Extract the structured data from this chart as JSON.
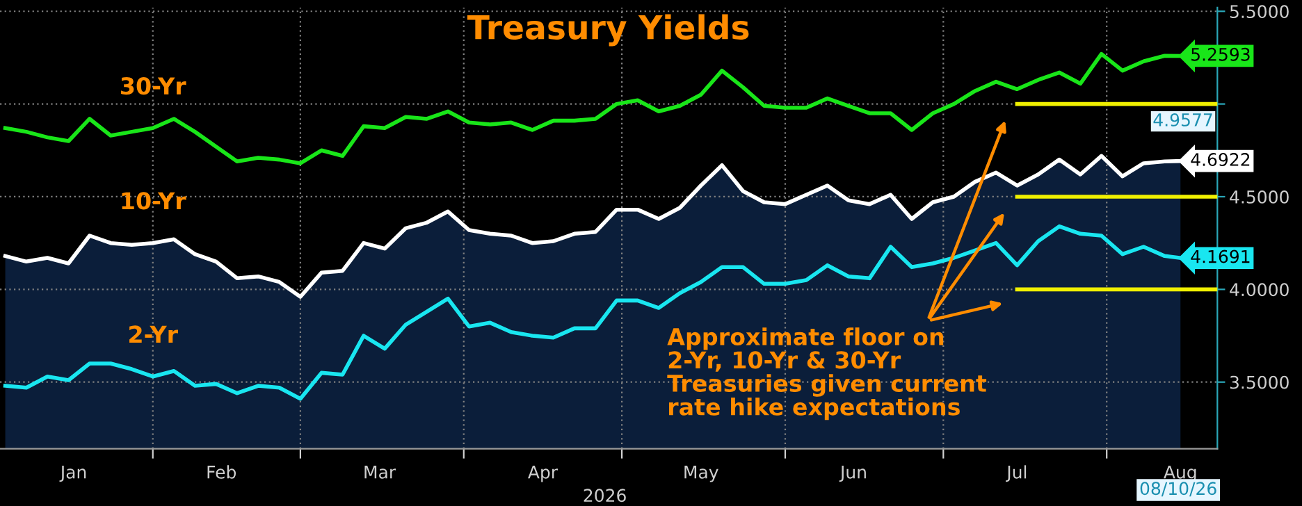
{
  "chart_data": {
    "type": "line",
    "title": "Treasury Yields",
    "xlabel": "2026",
    "x": [
      "2026-01-04",
      "2026-01-08",
      "2026-01-12",
      "2026-01-16",
      "2026-01-20",
      "2026-01-24",
      "2026-01-28",
      "2026-02-01",
      "2026-02-05",
      "2026-02-09",
      "2026-02-13",
      "2026-02-17",
      "2026-02-21",
      "2026-02-25",
      "2026-03-01",
      "2026-03-05",
      "2026-03-09",
      "2026-03-13",
      "2026-03-17",
      "2026-03-21",
      "2026-03-25",
      "2026-03-29",
      "2026-04-02",
      "2026-04-06",
      "2026-04-10",
      "2026-04-14",
      "2026-04-18",
      "2026-04-22",
      "2026-04-26",
      "2026-04-30",
      "2026-05-04",
      "2026-05-08",
      "2026-05-12",
      "2026-05-16",
      "2026-05-20",
      "2026-05-24",
      "2026-05-28",
      "2026-06-01",
      "2026-06-05",
      "2026-06-09",
      "2026-06-13",
      "2026-06-17",
      "2026-06-21",
      "2026-06-25",
      "2026-06-29",
      "2026-07-03",
      "2026-07-07",
      "2026-07-11",
      "2026-07-15",
      "2026-07-19",
      "2026-07-23",
      "2026-07-27",
      "2026-07-31",
      "2026-08-04",
      "2026-08-08",
      "2026-08-12",
      "2026-08-15"
    ],
    "series": [
      {
        "name": "30-Yr",
        "color": "#19e619",
        "values": [
          4.87,
          4.85,
          4.82,
          4.8,
          4.92,
          4.83,
          4.85,
          4.87,
          4.92,
          4.85,
          4.77,
          4.69,
          4.71,
          4.7,
          4.68,
          4.75,
          4.72,
          4.88,
          4.87,
          4.93,
          4.92,
          4.96,
          4.9,
          4.89,
          4.9,
          4.86,
          4.91,
          4.91,
          4.92,
          5.0,
          5.02,
          4.96,
          4.99,
          5.05,
          5.18,
          5.09,
          4.99,
          4.98,
          4.98,
          5.03,
          4.99,
          4.95,
          4.95,
          4.86,
          4.95,
          5.0,
          5.07,
          5.12,
          5.08,
          5.13,
          5.17,
          5.11,
          5.27,
          5.18,
          5.23,
          5.26,
          5.2593
        ],
        "value_labels": [
          null,
          null,
          null,
          null,
          null,
          null,
          null,
          null,
          null,
          null,
          null,
          null,
          null,
          null,
          null,
          null,
          null,
          null,
          null,
          null,
          null,
          null,
          null,
          null,
          null,
          null,
          null,
          null,
          null,
          null,
          null,
          null,
          null,
          null,
          null,
          null,
          null,
          null,
          null,
          null,
          null,
          null,
          null,
          null,
          null,
          null,
          null,
          null,
          null,
          null,
          null,
          null,
          null,
          null,
          null,
          null,
          "5.2593"
        ]
      },
      {
        "name": "10-Yr",
        "type": "area",
        "color": "#ffffff",
        "values": [
          4.18,
          4.15,
          4.17,
          4.14,
          4.29,
          4.25,
          4.24,
          4.25,
          4.27,
          4.19,
          4.15,
          4.06,
          4.07,
          4.04,
          3.96,
          4.09,
          4.1,
          4.25,
          4.22,
          4.33,
          4.36,
          4.42,
          4.32,
          4.3,
          4.29,
          4.25,
          4.26,
          4.3,
          4.31,
          4.43,
          4.43,
          4.38,
          4.44,
          4.56,
          4.67,
          4.53,
          4.47,
          4.46,
          4.51,
          4.56,
          4.48,
          4.46,
          4.51,
          4.38,
          4.47,
          4.5,
          4.58,
          4.63,
          4.56,
          4.62,
          4.7,
          4.62,
          4.72,
          4.61,
          4.68,
          4.69,
          4.6922
        ],
        "value_labels": [
          null,
          null,
          null,
          null,
          null,
          null,
          null,
          null,
          null,
          null,
          null,
          null,
          null,
          null,
          null,
          null,
          null,
          null,
          null,
          null,
          null,
          null,
          null,
          null,
          null,
          null,
          null,
          null,
          null,
          null,
          null,
          null,
          null,
          null,
          null,
          null,
          null,
          null,
          null,
          null,
          null,
          null,
          null,
          null,
          null,
          null,
          null,
          null,
          null,
          null,
          null,
          null,
          null,
          null,
          null,
          null,
          "4.6922"
        ]
      },
      {
        "name": "2-Yr",
        "color": "#19e6f0",
        "values": [
          3.48,
          3.47,
          3.53,
          3.51,
          3.6,
          3.6,
          3.57,
          3.53,
          3.56,
          3.48,
          3.49,
          3.44,
          3.48,
          3.47,
          3.41,
          3.55,
          3.54,
          3.75,
          3.68,
          3.81,
          3.88,
          3.95,
          3.8,
          3.82,
          3.77,
          3.75,
          3.74,
          3.79,
          3.79,
          3.94,
          3.94,
          3.9,
          3.98,
          4.04,
          4.12,
          4.12,
          4.03,
          4.03,
          4.05,
          4.13,
          4.07,
          4.06,
          4.23,
          4.12,
          4.14,
          4.17,
          4.21,
          4.25,
          4.13,
          4.26,
          4.34,
          4.3,
          4.29,
          4.19,
          4.23,
          4.18,
          4.1691
        ],
        "value_labels": [
          null,
          null,
          null,
          null,
          null,
          null,
          null,
          null,
          null,
          null,
          null,
          null,
          null,
          null,
          null,
          null,
          null,
          null,
          null,
          null,
          null,
          null,
          null,
          null,
          null,
          null,
          null,
          null,
          null,
          null,
          null,
          null,
          null,
          null,
          null,
          null,
          null,
          null,
          null,
          null,
          null,
          null,
          null,
          null,
          null,
          null,
          null,
          null,
          null,
          null,
          null,
          null,
          null,
          null,
          null,
          null,
          "4.1691"
        ]
      },
      {
        "color": "#f0f000",
        "x": [
          "2026-07-15",
          "2026-08-22"
        ],
        "values": [
          5.0,
          5.0
        ]
      },
      {
        "color": "#f0f000",
        "x": [
          "2026-07-15",
          "2026-08-22"
        ],
        "values": [
          4.5,
          4.5
        ]
      },
      {
        "color": "#f0f000",
        "x": [
          "2026-07-15",
          "2026-08-22"
        ],
        "values": [
          4.0,
          4.0
        ]
      }
    ],
    "xlim": [
      "2026-01-03",
      "2026-08-22"
    ],
    "xticks": [
      {
        "value": "2026-02-01",
        "label": null
      },
      {
        "value": "2026-03-01",
        "label": null
      },
      {
        "value": "2026-04-01",
        "label": null
      },
      {
        "value": "2026-05-01",
        "label": null
      },
      {
        "value": "2026-06-01",
        "label": null
      },
      {
        "value": "2026-07-01",
        "label": null
      },
      {
        "value": "2026-08-01",
        "label": null
      },
      {
        "value": "2026-01-17",
        "label": "Jan"
      },
      {
        "value": "2026-02-14",
        "label": "Feb"
      },
      {
        "value": "2026-03-16",
        "label": "Mar"
      },
      {
        "value": "2026-04-16",
        "label": "Apr"
      },
      {
        "value": "2026-05-16",
        "label": "May"
      },
      {
        "value": "2026-06-14",
        "label": "Jun"
      },
      {
        "value": "2026-07-15",
        "label": "Jul"
      },
      {
        "value": "2026-08-15",
        "label": "Aug"
      }
    ],
    "ylim": [
      3.14,
      5.52
    ],
    "yticks": [
      {
        "value": 3.5,
        "label": "3.5000"
      },
      {
        "value": 4.0,
        "label": "4.0000"
      },
      {
        "value": 4.5,
        "label": "4.5000"
      },
      {
        "value": 5.0,
        "label": null
      },
      {
        "value": 5.5,
        "label": "5.5000"
      }
    ],
    "grid": true,
    "legend": false,
    "line_style": "solid",
    "marker": "none",
    "annotations": [
      "4.9577",
      "Approximate floor on\n2-Yr, 10-Yr & 30-Yr\nTreasuries given current\nrate hike expectations",
      "08/10/26"
    ]
  }
}
